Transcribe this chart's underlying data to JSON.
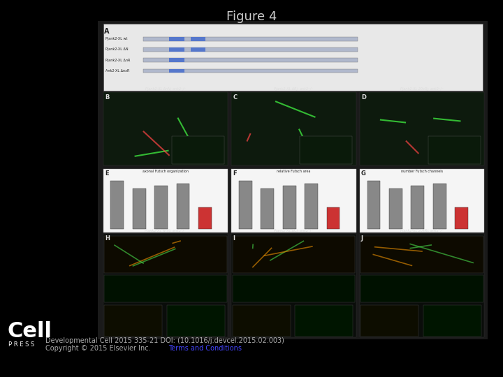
{
  "title": "Figure 4",
  "title_fontsize": 13,
  "title_color": "#cccccc",
  "background_color": "#000000",
  "cell_logo_text": "Cell",
  "cell_logo_subtext": "P R E S S",
  "citation_line1": "Developmental Cell 2015 335-21 DOI: (10.1016/j.devcel.2015.02.003)",
  "citation_line2": "Copyright © 2015 Elsevier Inc.",
  "citation_line3": "Terms and Conditions",
  "citation_color": "#aaaaaa",
  "citation_link_color": "#4444ff",
  "citation_fontsize": 7,
  "logo_color": "#ffffff",
  "logo_fontsize": 22,
  "logo_sub_fontsize": 6
}
